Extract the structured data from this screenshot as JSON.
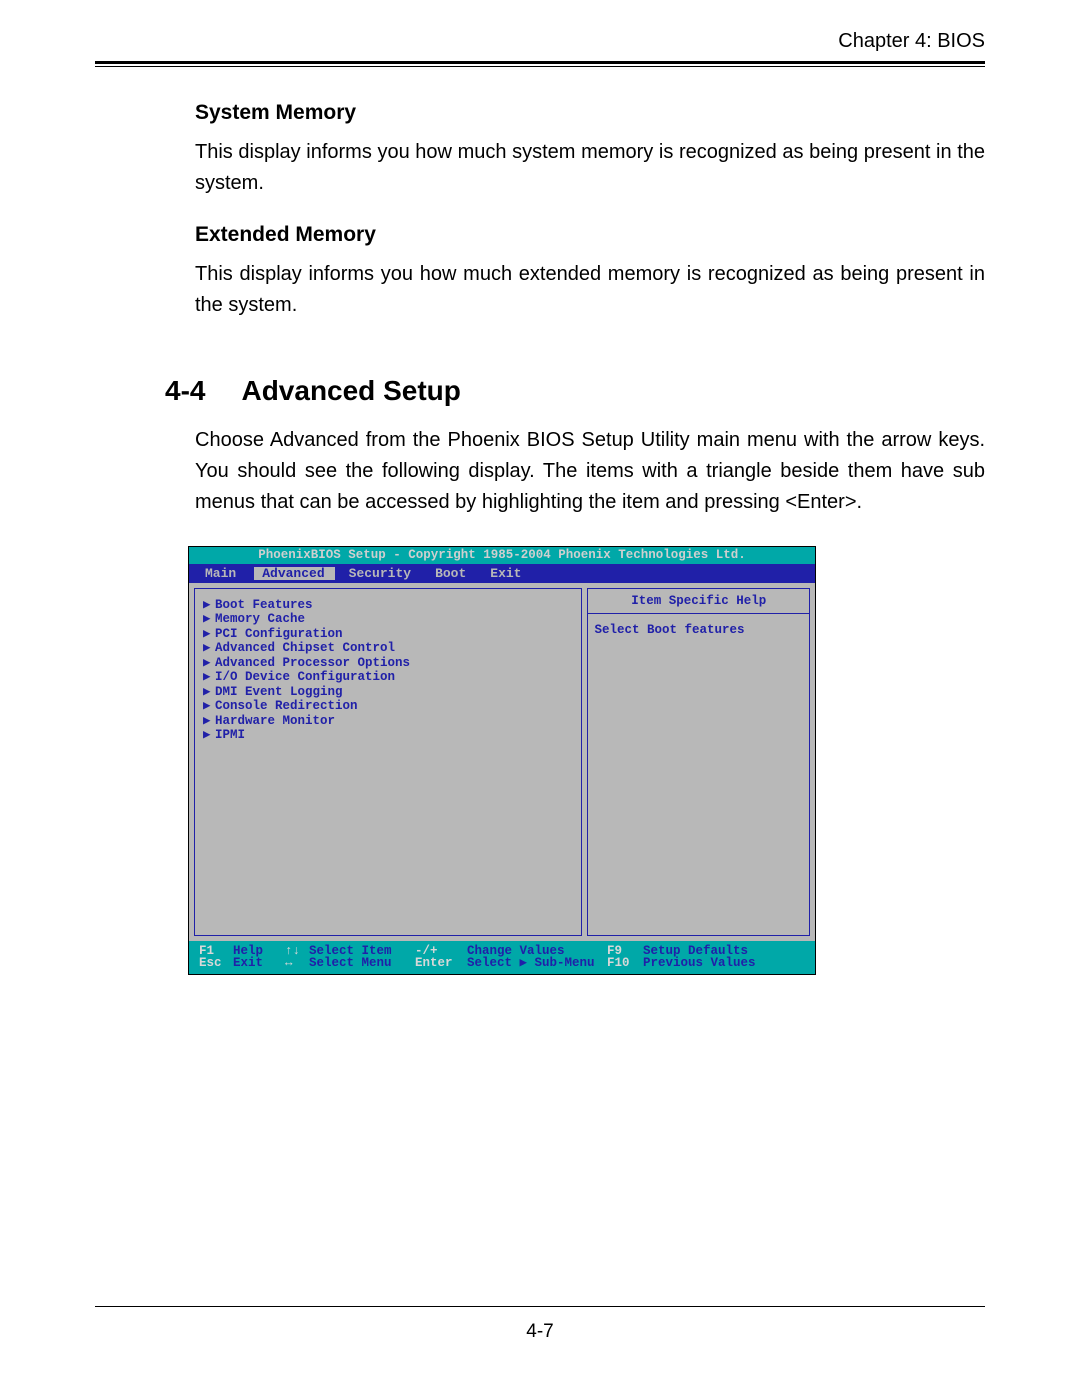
{
  "chapter_header": "Chapter 4: BIOS",
  "sections": {
    "system_memory": {
      "heading": "System Memory",
      "body": "This display informs you how much system memory is recognized as being present in the system."
    },
    "extended_memory": {
      "heading": "Extended Memory",
      "body": "This display informs you how much extended memory is recognized as being present in the system."
    },
    "advanced_setup": {
      "number": "4-4",
      "title": "Advanced Setup",
      "intro": "Choose Advanced from the Phoenix BIOS Setup Utility main menu with the arrow keys. You should see the following display.  The items with a triangle beside them have sub menus that can be accessed by highlighting the item and pressing <Enter>."
    }
  },
  "bios": {
    "title": "PhoenixBIOS Setup - Copyright 1985-2004 Phoenix Technologies Ltd.",
    "tabs": [
      "Main",
      "Advanced",
      "Security",
      "Boot",
      "Exit"
    ],
    "active_tab_index": 1,
    "menu_items": [
      {
        "label": "Boot Features",
        "selected": true
      },
      {
        "label": "Memory Cache",
        "selected": false
      },
      {
        "label": "PCI Configuration",
        "selected": false
      },
      {
        "label": "Advanced Chipset Control",
        "selected": false
      },
      {
        "label": "Advanced Processor Options",
        "selected": false
      },
      {
        "label": "I/O Device Configuration",
        "selected": false
      },
      {
        "label": "DMI Event Logging",
        "selected": false
      },
      {
        "label": "Console Redirection",
        "selected": false
      },
      {
        "label": "Hardware Monitor",
        "selected": false
      },
      {
        "label": "IPMI",
        "selected": false
      }
    ],
    "help_title": "Item Specific Help",
    "help_body": "Select Boot features",
    "footer": {
      "row1": {
        "k1": "F1",
        "l1": "Help",
        "k2": "↑↓",
        "l2": "Select Item",
        "k3": "-/+",
        "l3": "Change Values",
        "k4": "F9",
        "l4": "Setup Defaults"
      },
      "row2": {
        "k1": "Esc",
        "l1": "Exit",
        "k2": "↔",
        "l2": "Select Menu",
        "k3": "Enter",
        "l3": "Select ▶ Sub-Menu",
        "k4": "F10",
        "l4": "Previous Values"
      }
    },
    "colors": {
      "teal": "#00a8a8",
      "blue": "#2020a8",
      "gray": "#b8b8b8",
      "light": "#d8d8d8"
    }
  },
  "page_number": "4-7"
}
